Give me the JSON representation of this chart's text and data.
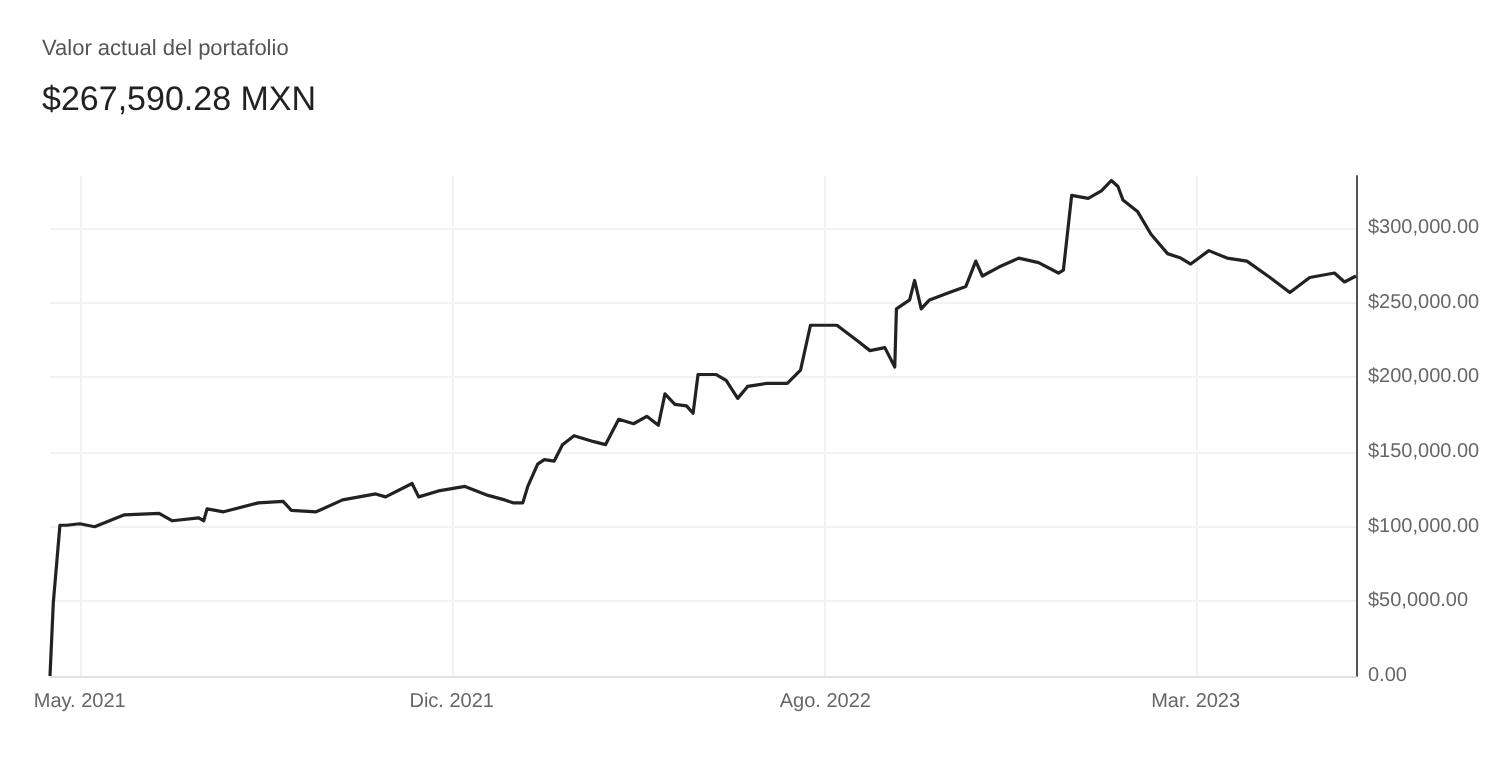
{
  "chart_data": {
    "type": "line",
    "title": "Valor actual del portafolio",
    "subtitle": "$267,590.28 MXN",
    "x": [
      "2021-04-22",
      "2021-04-24",
      "2021-04-28",
      "2021-05-02",
      "2021-05-10",
      "2021-05-19",
      "2021-06-06",
      "2021-06-27",
      "2021-07-05",
      "2021-07-21",
      "2021-07-24",
      "2021-07-26",
      "2021-08-05",
      "2021-08-26",
      "2021-09-10",
      "2021-09-15",
      "2021-09-30",
      "2021-10-16",
      "2021-11-05",
      "2021-11-11",
      "2021-11-27",
      "2021-12-01",
      "2021-12-13",
      "2021-12-29",
      "2022-01-12",
      "2022-01-22",
      "2022-01-27",
      "2022-02-02",
      "2022-02-05",
      "2022-02-11",
      "2022-02-15",
      "2022-02-21",
      "2022-02-26",
      "2022-03-05",
      "2022-03-17",
      "2022-03-24",
      "2022-04-01",
      "2022-04-10",
      "2022-04-18",
      "2022-04-25",
      "2022-04-29",
      "2022-05-05",
      "2022-05-12",
      "2022-05-16",
      "2022-05-19",
      "2022-05-30",
      "2022-06-05",
      "2022-06-12",
      "2022-06-18",
      "2022-06-29",
      "2022-07-12",
      "2022-07-20",
      "2022-07-26",
      "2022-08-11",
      "2022-08-23",
      "2022-08-31",
      "2022-09-09",
      "2022-09-15",
      "2022-09-16",
      "2022-09-24",
      "2022-09-27",
      "2022-10-01",
      "2022-10-06",
      "2022-10-18",
      "2022-10-28",
      "2022-11-03",
      "2022-11-07",
      "2022-11-17",
      "2022-11-29",
      "2022-12-11",
      "2022-12-23",
      "2022-12-26",
      "2022-12-31",
      "2023-01-10",
      "2023-01-18",
      "2023-01-24",
      "2023-01-28",
      "2023-01-31",
      "2023-02-09",
      "2023-02-17",
      "2023-02-27",
      "2023-03-07",
      "2023-03-13",
      "2023-03-24",
      "2023-04-04",
      "2023-04-16",
      "2023-04-30",
      "2023-05-12",
      "2023-05-24",
      "2023-06-08",
      "2023-06-14",
      "2023-06-21"
    ],
    "series": [
      {
        "color": "#222222",
        "values": [
          0,
          49000,
          101000,
          101000,
          102000,
          100000,
          108000,
          109000,
          104000,
          106000,
          104000,
          112000,
          110000,
          116000,
          117000,
          111000,
          110000,
          118000,
          122000,
          120000,
          129000,
          120000,
          124000,
          127000,
          121000,
          118000,
          116000,
          116000,
          127000,
          142000,
          145000,
          144000,
          155000,
          161000,
          157000,
          155000,
          172000,
          169000,
          174000,
          168000,
          189000,
          182000,
          181000,
          176000,
          202000,
          202000,
          198000,
          186000,
          194000,
          196000,
          196000,
          205000,
          235000,
          235000,
          225000,
          218000,
          220000,
          207000,
          246000,
          252000,
          265000,
          246000,
          252000,
          257000,
          261000,
          278000,
          268000,
          274000,
          280000,
          277000,
          270000,
          272000,
          322000,
          320000,
          325000,
          332000,
          328000,
          319000,
          311000,
          296000,
          283000,
          280000,
          276000,
          285000,
          280000,
          278000,
          267000,
          257000,
          267000,
          270000,
          264000,
          268000
        ]
      }
    ],
    "xlim": [
      "2021-04-22",
      "2023-06-21"
    ],
    "xticks": [
      {
        "value": "2021-05-10",
        "label": "May. 2021"
      },
      {
        "value": "2021-12-21",
        "label": "Dic. 2021"
      },
      {
        "value": "2022-08-04",
        "label": "Ago. 2022"
      },
      {
        "value": "2023-03-16",
        "label": "Mar. 2023"
      }
    ],
    "ylim": [
      0,
      335000
    ],
    "yticks": [
      {
        "value": 0,
        "label": "0.00"
      },
      {
        "value": 50000,
        "label": "$50,000.00"
      },
      {
        "value": 100000,
        "label": "$100,000.00"
      },
      {
        "value": 150000,
        "label": "$150,000.00"
      },
      {
        "value": 200000,
        "label": "$200,000.00"
      },
      {
        "value": 250000,
        "label": "$250,000.00"
      },
      {
        "value": 300000,
        "label": "$300,000.00"
      }
    ],
    "grid": true,
    "marker": "none",
    "line_style": "solid"
  }
}
